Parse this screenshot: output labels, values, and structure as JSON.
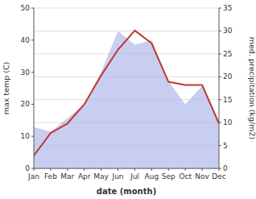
{
  "chart_data": {
    "type": "line",
    "categories": [
      "Jan",
      "Feb",
      "Mar",
      "Apr",
      "May",
      "Jun",
      "Jul",
      "Aug",
      "Sep",
      "Oct",
      "Nov",
      "Dec"
    ],
    "series": [
      {
        "type": "line",
        "color": "#c0392b",
        "values": [
          4,
          11,
          14,
          20,
          29,
          37,
          43,
          39,
          27,
          26,
          26,
          14
        ]
      },
      {
        "type": "area",
        "color": "#aab4e8",
        "axis": "y2",
        "values": [
          9,
          8,
          11,
          14,
          21,
          30,
          27,
          28,
          19,
          14,
          18,
          10
        ]
      }
    ],
    "xlabel": "date (month)",
    "ylabel": "max temp (C)",
    "y2label": "med. precipitation (kg/m2)",
    "ylim": [
      0,
      50
    ],
    "yticks": [
      0,
      10,
      20,
      30,
      40,
      50
    ],
    "y2lim": [
      0,
      35
    ],
    "y2ticks": [
      0,
      5,
      10,
      15,
      20,
      25,
      30,
      35
    ],
    "grid": true
  }
}
